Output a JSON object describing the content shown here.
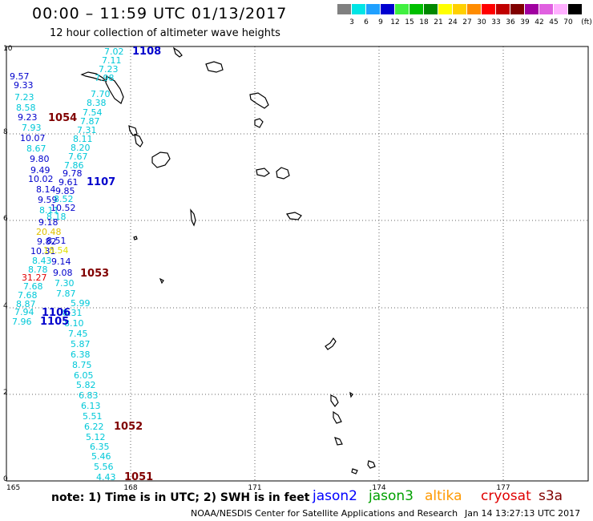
{
  "header": {
    "title": "00:00 – 11:59 UTC 01/13/2017",
    "subtitle": "12 hour collection of altimeter wave heights"
  },
  "legend": {
    "units": "(ft)",
    "bins": [
      {
        "label": "3",
        "color": "#808080"
      },
      {
        "label": "6",
        "color": "#00e5e5"
      },
      {
        "label": "9",
        "color": "#1fa0ff"
      },
      {
        "label": "12",
        "color": "#0000d0"
      },
      {
        "label": "15",
        "color": "#40f040"
      },
      {
        "label": "18",
        "color": "#00c000"
      },
      {
        "label": "21",
        "color": "#008800"
      },
      {
        "label": "24",
        "color": "#ffff00"
      },
      {
        "label": "27",
        "color": "#ffd000"
      },
      {
        "label": "30",
        "color": "#ff8c00"
      },
      {
        "label": "33",
        "color": "#ff0000"
      },
      {
        "label": "36",
        "color": "#c00000"
      },
      {
        "label": "39",
        "color": "#800000"
      },
      {
        "label": "42",
        "color": "#a000a0"
      },
      {
        "label": "45",
        "color": "#e060e0"
      },
      {
        "label": "70",
        "color": "#ffb0ff"
      },
      {
        "label": "",
        "color": "#000000"
      }
    ]
  },
  "axes": {
    "x_ticks": [
      "165",
      "168",
      "171",
      "174",
      "177"
    ],
    "y_ticks": [
      "0",
      "2",
      "4",
      "6",
      "8",
      "10"
    ]
  },
  "passes": [
    {
      "id": "1108",
      "color": "#0000cc"
    },
    {
      "id": "1054",
      "color": "#800000"
    },
    {
      "id": "1107",
      "color": "#0000cc"
    },
    {
      "id": "1053",
      "color": "#800000"
    },
    {
      "id": "1106",
      "color": "#0000cc"
    },
    {
      "id": "1105",
      "color": "#0000cc"
    },
    {
      "id": "1052",
      "color": "#800000"
    },
    {
      "id": "1051",
      "color": "#800000"
    }
  ],
  "wave_heights": [
    {
      "v": "7.02",
      "c": "#00c8d8"
    },
    {
      "v": "7.11",
      "c": "#00c8d8"
    },
    {
      "v": "7.23",
      "c": "#00c8d8"
    },
    {
      "v": "9.57",
      "c": "#0000cc"
    },
    {
      "v": "9.33",
      "c": "#0000cc"
    },
    {
      "v": "7.98",
      "c": "#00c8d8"
    },
    {
      "v": "7.23",
      "c": "#00c8d8"
    },
    {
      "v": "7.70",
      "c": "#00c8d8"
    },
    {
      "v": "8.38",
      "c": "#00c8d8"
    },
    {
      "v": "8.58",
      "c": "#00c8d8"
    },
    {
      "v": "7.54",
      "c": "#00c8d8"
    },
    {
      "v": "9.23",
      "c": "#0000cc"
    },
    {
      "v": "7.87",
      "c": "#00c8d8"
    },
    {
      "v": "7.93",
      "c": "#00c8d8"
    },
    {
      "v": "7.31",
      "c": "#00c8d8"
    },
    {
      "v": "10.07",
      "c": "#0000cc"
    },
    {
      "v": "8.11",
      "c": "#00c8d8"
    },
    {
      "v": "8.67",
      "c": "#00c8d8"
    },
    {
      "v": "8.20",
      "c": "#00c8d8"
    },
    {
      "v": "9.80",
      "c": "#0000cc"
    },
    {
      "v": "7.67",
      "c": "#00c8d8"
    },
    {
      "v": "7.86",
      "c": "#00c8d8"
    },
    {
      "v": "9.49",
      "c": "#0000cc"
    },
    {
      "v": "9.78",
      "c": "#0000cc"
    },
    {
      "v": "10.02",
      "c": "#0000cc"
    },
    {
      "v": "9.61",
      "c": "#0000cc"
    },
    {
      "v": "8.14",
      "c": "#0000cc"
    },
    {
      "v": "9.85",
      "c": "#0000cc"
    },
    {
      "v": "9.59",
      "c": "#0000cc"
    },
    {
      "v": "8.52",
      "c": "#00c8d8"
    },
    {
      "v": "8.11",
      "c": "#00c8d8"
    },
    {
      "v": "10.52",
      "c": "#0000cc"
    },
    {
      "v": "8.18",
      "c": "#00c8d8"
    },
    {
      "v": "9.18",
      "c": "#0000cc"
    },
    {
      "v": "20.48",
      "c": "#e0c000"
    },
    {
      "v": "9.82",
      "c": "#0000cc"
    },
    {
      "v": "8.51",
      "c": "#0000cc"
    },
    {
      "v": "10.31",
      "c": "#0000cc"
    },
    {
      "v": "18.54",
      "c": "#e0e000"
    },
    {
      "v": "8.43",
      "c": "#00c8d8"
    },
    {
      "v": "9.14",
      "c": "#0000cc"
    },
    {
      "v": "8.78",
      "c": "#00c8d8"
    },
    {
      "v": "9.08",
      "c": "#0000cc"
    },
    {
      "v": "31.27",
      "c": "#e00000"
    },
    {
      "v": "7.30",
      "c": "#00c8d8"
    },
    {
      "v": "7.68",
      "c": "#00c8d8"
    },
    {
      "v": "7.87",
      "c": "#00c8d8"
    },
    {
      "v": "7.68",
      "c": "#00c8d8"
    },
    {
      "v": "8.87",
      "c": "#00c8d8"
    },
    {
      "v": "5.99",
      "c": "#00c8d8"
    },
    {
      "v": "7.94",
      "c": "#00c8d8"
    },
    {
      "v": "8.31",
      "c": "#00c8d8"
    },
    {
      "v": "7.96",
      "c": "#00c8d8"
    },
    {
      "v": "8.10",
      "c": "#00c8d8"
    },
    {
      "v": "7.45",
      "c": "#00c8d8"
    },
    {
      "v": "5.87",
      "c": "#00c8d8"
    },
    {
      "v": "6.38",
      "c": "#00c8d8"
    },
    {
      "v": "8.75",
      "c": "#00c8d8"
    },
    {
      "v": "6.05",
      "c": "#00c8d8"
    },
    {
      "v": "5.82",
      "c": "#00c8d8"
    },
    {
      "v": "6.83",
      "c": "#00c8d8"
    },
    {
      "v": "6.13",
      "c": "#00c8d8"
    },
    {
      "v": "5.51",
      "c": "#00c8d8"
    },
    {
      "v": "6.22",
      "c": "#00c8d8"
    },
    {
      "v": "5.12",
      "c": "#00c8d8"
    },
    {
      "v": "6.35",
      "c": "#00c8d8"
    },
    {
      "v": "5.46",
      "c": "#00c8d8"
    },
    {
      "v": "5.56",
      "c": "#00c8d8"
    },
    {
      "v": "4.43",
      "c": "#00c8d8"
    }
  ],
  "footer": {
    "note": "note: 1) Time is in UTC; 2) SWH is in feet",
    "satellites": [
      {
        "name": "jason2",
        "color": "#0000ff"
      },
      {
        "name": "jason3",
        "color": "#00a000"
      },
      {
        "name": "altika",
        "color": "#ff9900"
      },
      {
        "name": "cryosat",
        "color": "#e00000"
      },
      {
        "name": "s3a",
        "color": "#800000"
      }
    ],
    "credit": "NOAA/NESDIS Center for Satellite Applications and Research",
    "timestamp": "Jan 14 13:27:13 UTC 2017"
  }
}
